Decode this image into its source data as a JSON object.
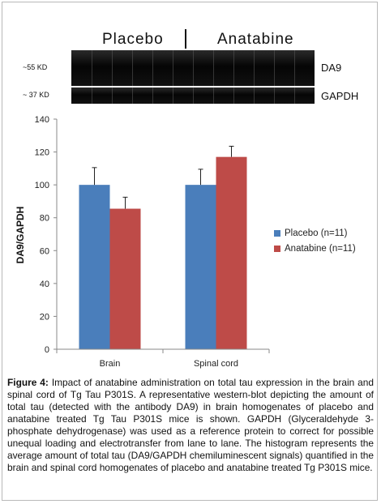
{
  "blot": {
    "groups": [
      "Placebo",
      "Anatabine"
    ],
    "bands": [
      {
        "mw": "~55 KD",
        "name": "DA9"
      },
      {
        "mw": "~ 37 KD",
        "name": "GAPDH"
      }
    ]
  },
  "chart_data": {
    "type": "bar",
    "categories": [
      "Brain",
      "Spinal cord"
    ],
    "series": [
      {
        "name": "Placebo (n=11)",
        "values": [
          100,
          100
        ],
        "errors": [
          10.5,
          9.5
        ],
        "color": "#4a7ebb"
      },
      {
        "name": "Anatabine (n=11)",
        "values": [
          85.5,
          117
        ],
        "errors": [
          7,
          6.5
        ],
        "color": "#be4b48"
      }
    ],
    "ylabel": "DA9/GAPDH",
    "xlabel": "",
    "ylim": [
      0,
      140
    ],
    "yticks": [
      0,
      20,
      40,
      60,
      80,
      100,
      120,
      140
    ],
    "legend_position": "right",
    "grid": false
  },
  "caption": {
    "label": "Figure 4:",
    "text": " Impact of anatabine administration on total tau expression in the brain and spinal cord of Tg Tau P301S. A representative western-blot depicting the amount of total tau (detected with the antibody DA9) in brain homogenates of placebo and anatabine treated Tg Tau P301S mice is shown. GAPDH (Glyceraldehyde 3-phosphate dehydrogenase) was used as a reference protein to correct for possible unequal loading and electrotransfer from lane to lane. The histogram represents the average amount of total tau (DA9/GAPDH chemiluminescent signals) quantified in the brain and spinal cord homogenates of placebo and anatabine treated Tg P301S mice."
  }
}
